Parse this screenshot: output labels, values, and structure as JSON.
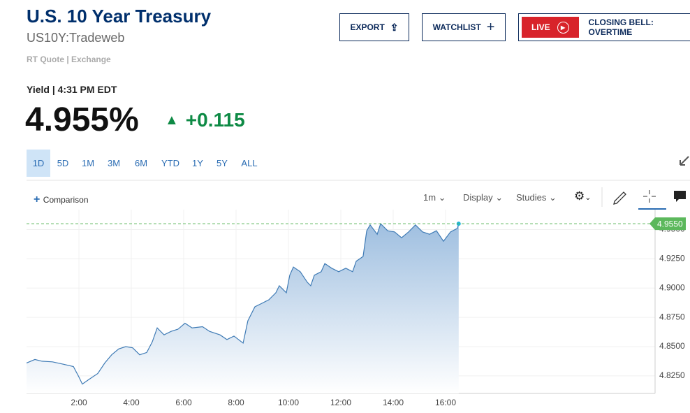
{
  "header": {
    "title": "U.S. 10 Year Treasury",
    "symbol": "US10Y:Tradeweb",
    "quote_source": "RT Quote | Exchange"
  },
  "buttons": {
    "export": "EXPORT",
    "watchlist": "WATCHLIST",
    "live": "LIVE",
    "live_text": "CLOSING BELL: OVERTIME"
  },
  "quote": {
    "label": "Yield | 4:31 PM EDT",
    "price": "4.955%",
    "change": "+0.115"
  },
  "ranges": [
    "1D",
    "5D",
    "1M",
    "3M",
    "6M",
    "YTD",
    "1Y",
    "5Y",
    "ALL"
  ],
  "toolbar": {
    "comparison": "Comparison",
    "interval": "1m",
    "display": "Display",
    "studies": "Studies"
  },
  "chart_data": {
    "type": "area",
    "color": "#3f7bb5",
    "x": [
      0,
      0.32,
      0.59,
      0.99,
      1.39,
      1.79,
      2,
      2.13,
      2.45,
      2.72,
      2.99,
      3.25,
      3.52,
      3.79,
      4.05,
      4.32,
      4.59,
      4.8,
      4.99,
      5.25,
      5.52,
      5.79,
      6.05,
      6.32,
      6.72,
      6.99,
      7.39,
      7.65,
      7.92,
      8.27,
      8.45,
      8.72,
      8.99,
      9.25,
      9.52,
      9.65,
      9.92,
      10.05,
      10.19,
      10.45,
      10.72,
      10.85,
      10.99,
      11.25,
      11.39,
      11.65,
      11.92,
      12.19,
      12.45,
      12.59,
      12.85,
      12.99,
      13.12,
      13.39,
      13.52,
      13.79,
      14.05,
      14.32,
      14.59,
      14.85,
      15.12,
      15.39,
      15.65,
      15.92,
      16.19,
      16.45,
      16.5
    ],
    "values": [
      4.836,
      4.839,
      4.8375,
      4.837,
      4.835,
      4.833,
      4.824,
      4.818,
      4.823,
      4.827,
      4.836,
      4.843,
      4.848,
      4.85,
      4.849,
      4.843,
      4.845,
      4.854,
      4.866,
      4.86,
      4.863,
      4.865,
      4.87,
      4.866,
      4.867,
      4.863,
      4.86,
      4.856,
      4.859,
      4.853,
      4.872,
      4.884,
      4.887,
      4.89,
      4.896,
      4.902,
      4.896,
      4.911,
      4.918,
      4.914,
      4.905,
      4.902,
      4.911,
      4.914,
      4.921,
      4.917,
      4.914,
      4.917,
      4.914,
      4.923,
      4.927,
      4.949,
      4.954,
      4.946,
      4.955,
      4.949,
      4.948,
      4.943,
      4.948,
      4.954,
      4.948,
      4.946,
      4.949,
      4.94,
      4.948,
      4.951,
      4.955
    ],
    "xlim": [
      0,
      24
    ],
    "xticks": [
      {
        "value": 2,
        "label": "2:00"
      },
      {
        "value": 4,
        "label": "4:00"
      },
      {
        "value": 6,
        "label": "6:00"
      },
      {
        "value": 8,
        "label": "8:00"
      },
      {
        "value": 10,
        "label": "10:00"
      },
      {
        "value": 12,
        "label": "12:00"
      },
      {
        "value": 14,
        "label": "14:00"
      },
      {
        "value": 16,
        "label": "16:00"
      }
    ],
    "ylim": [
      4.81,
      4.967
    ],
    "yticks": [
      {
        "value": 4.825,
        "label": "4.8250"
      },
      {
        "value": 4.85,
        "label": "4.8500"
      },
      {
        "value": 4.875,
        "label": "4.8750"
      },
      {
        "value": 4.9,
        "label": "4.9000"
      },
      {
        "value": 4.925,
        "label": "4.9250"
      },
      {
        "value": 4.95,
        "label": "4.9500"
      }
    ],
    "grid": true,
    "reference_line": {
      "value": 4.955,
      "label": "4.9550",
      "color": "#5cb85c"
    }
  }
}
